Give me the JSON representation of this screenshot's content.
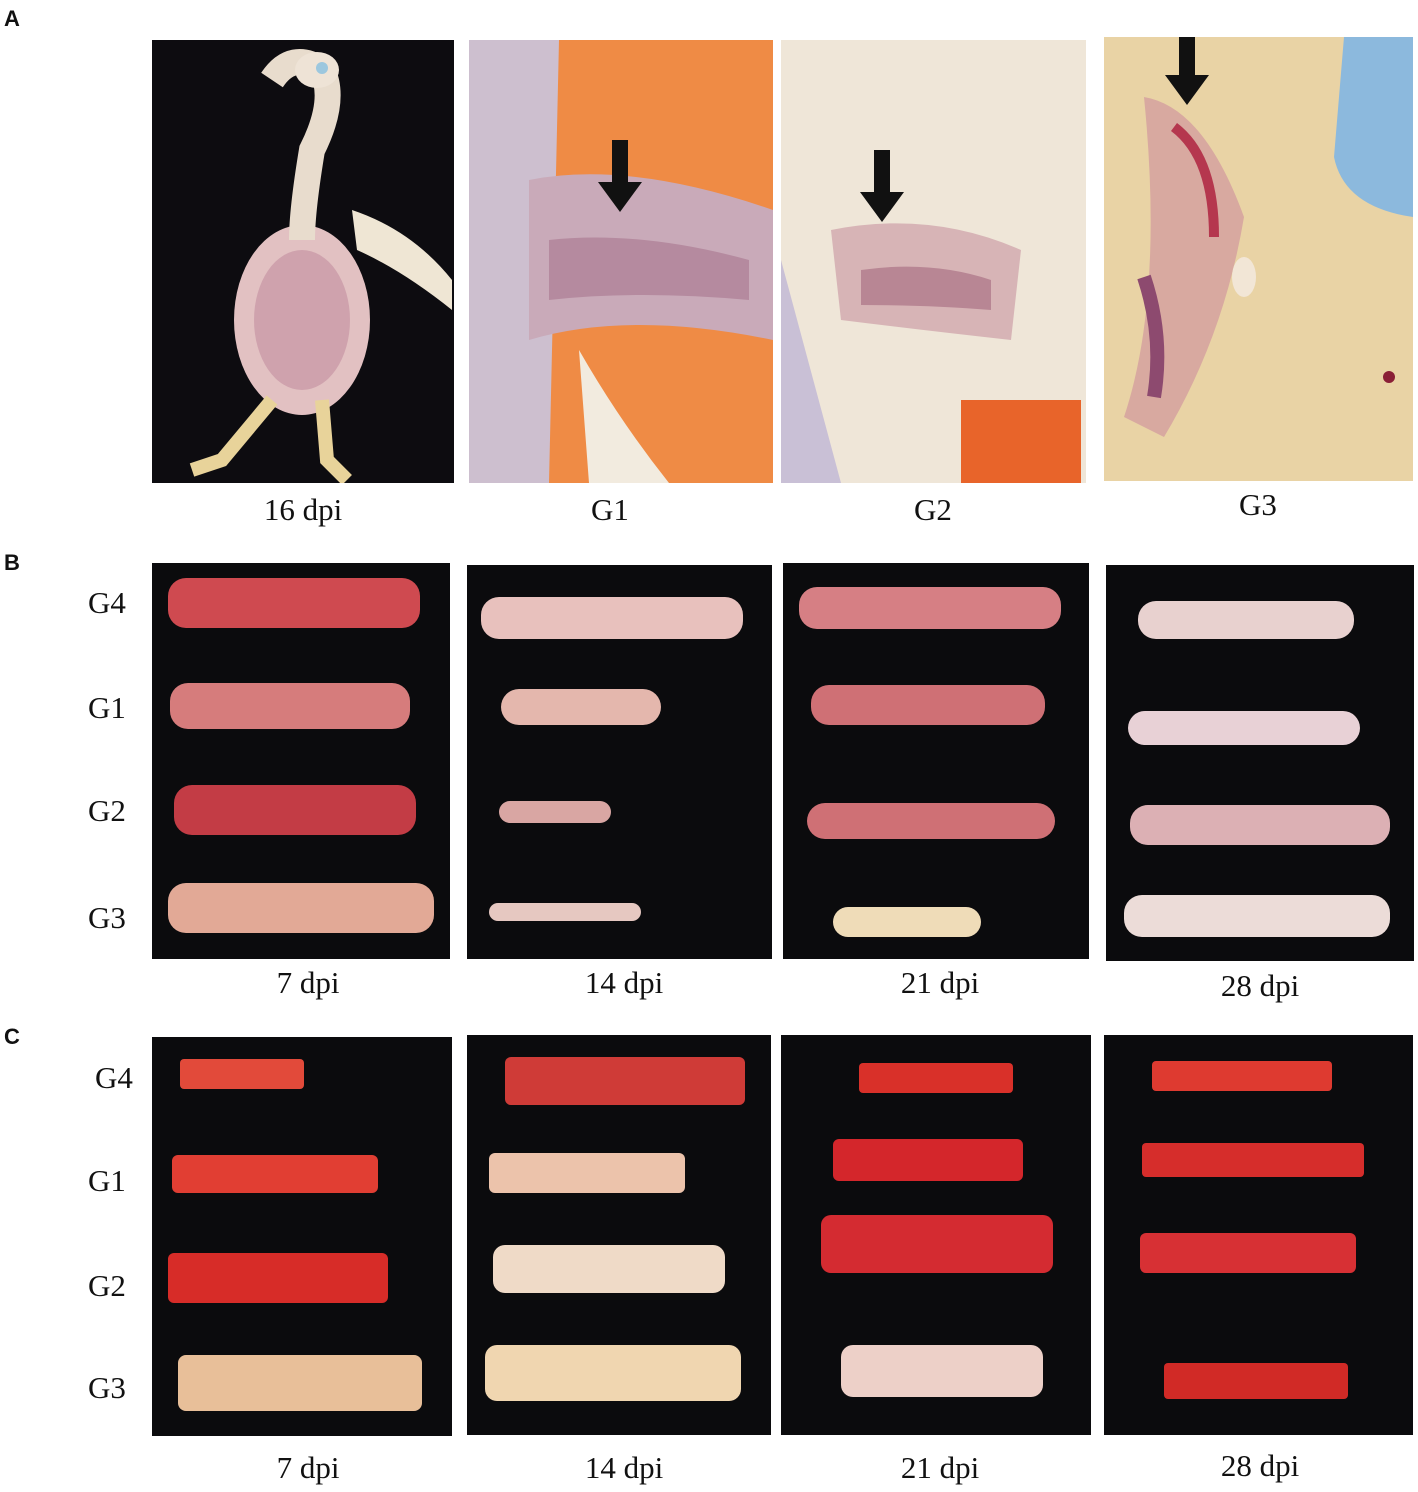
{
  "panel_a": {
    "letter": "A",
    "captions": [
      "16 dpi",
      "G1",
      "G2",
      "G3"
    ]
  },
  "panel_b": {
    "letter": "B",
    "row_labels": [
      "G4",
      "G1",
      "G2",
      "G3"
    ],
    "captions": [
      "7 dpi",
      "14 dpi",
      "21 dpi",
      "28 dpi"
    ]
  },
  "panel_c": {
    "letter": "C",
    "row_labels": [
      "G4",
      "G1",
      "G2",
      "G3"
    ],
    "captions": [
      "7 dpi",
      "14 dpi",
      "21 dpi",
      "28 dpi"
    ]
  },
  "colors": {
    "background": "#0b0b0d",
    "bursa_dark": "#c4434a",
    "bursa_pale": "#e6c9bf",
    "bone_red": "#c8281f",
    "bone_pale": "#e8c9a6",
    "arrow": "#111111"
  }
}
